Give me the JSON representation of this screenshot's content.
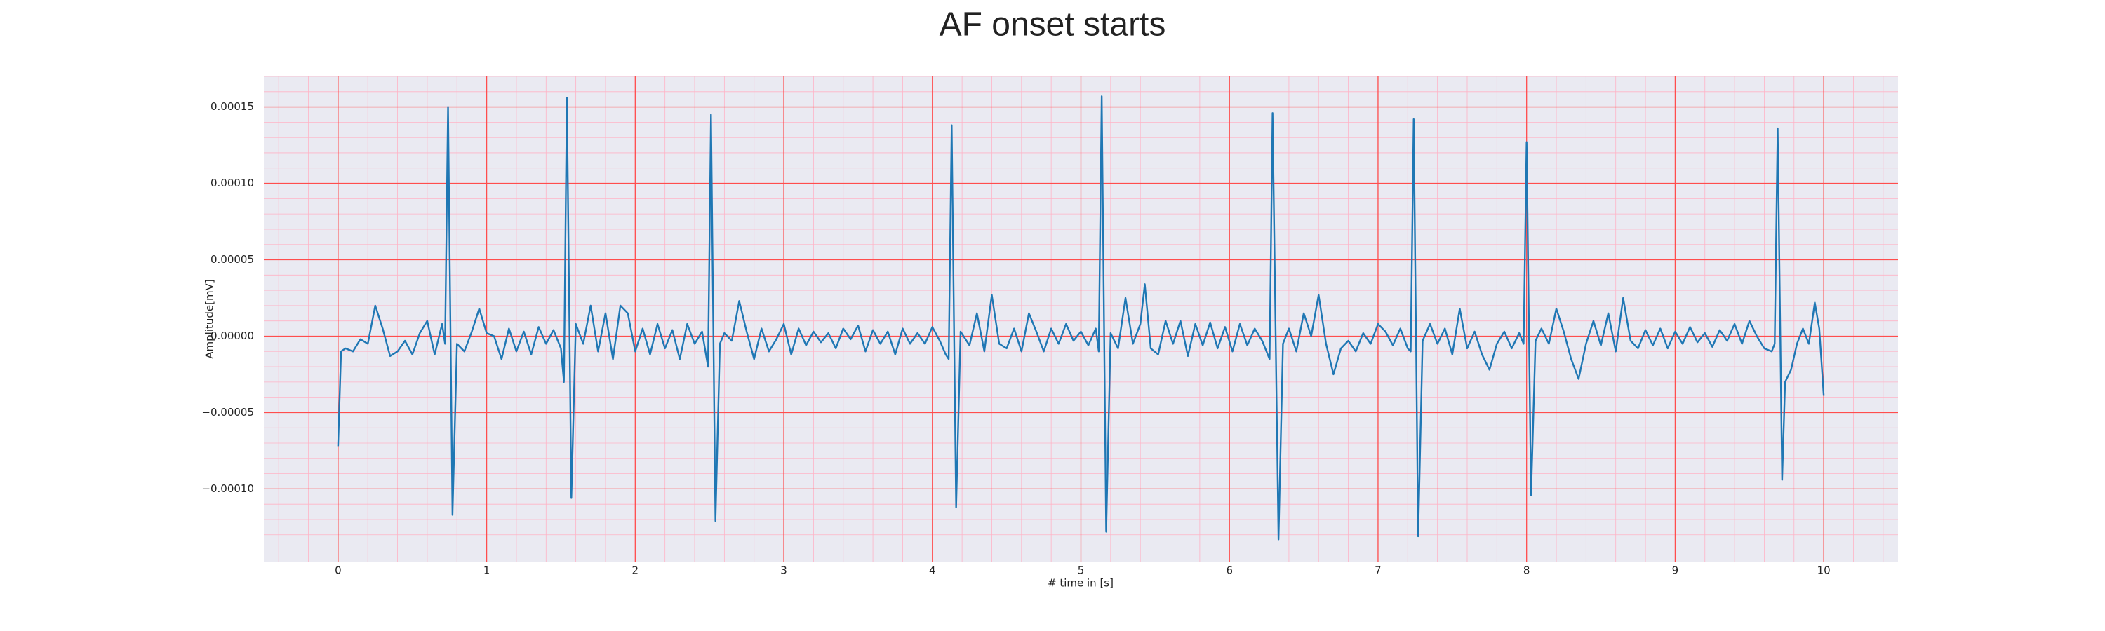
{
  "chart_data": {
    "type": "line",
    "title": "AF onset starts",
    "xlabel": "# time in [s]",
    "ylabel": "Amplitude[mV]",
    "color": "#1f77b4",
    "background": "#eaeaf2",
    "grid": true,
    "grid_color": "#ff4d4d",
    "minor_grid": true,
    "minor_grid_color": "#ffb3c6",
    "xlim": [
      -0.5,
      10.5
    ],
    "xticks": [
      0,
      1,
      2,
      3,
      4,
      5,
      6,
      7,
      8,
      9,
      10
    ],
    "ylim": [
      -0.000148,
      0.00017
    ],
    "yticks": [
      {
        "value": -0.0001,
        "label": "−0.00010"
      },
      {
        "value": -5e-05,
        "label": "−0.00005"
      },
      {
        "value": 0,
        "label": "0.00000"
      },
      {
        "value": 5e-05,
        "label": "0.00005"
      },
      {
        "value": 0.0001,
        "label": "0.00010"
      },
      {
        "value": 0.00015,
        "label": "0.00015"
      }
    ],
    "x": [
      0.0,
      0.02,
      0.05,
      0.1,
      0.15,
      0.2,
      0.25,
      0.3,
      0.35,
      0.4,
      0.45,
      0.5,
      0.55,
      0.6,
      0.65,
      0.7,
      0.72,
      0.74,
      0.77,
      0.8,
      0.85,
      0.9,
      0.95,
      1.0,
      1.05,
      1.1,
      1.15,
      1.2,
      1.25,
      1.3,
      1.35,
      1.4,
      1.45,
      1.5,
      1.52,
      1.54,
      1.57,
      1.6,
      1.65,
      1.7,
      1.75,
      1.8,
      1.85,
      1.9,
      1.95,
      2.0,
      2.05,
      2.1,
      2.15,
      2.2,
      2.25,
      2.3,
      2.35,
      2.4,
      2.45,
      2.49,
      2.51,
      2.54,
      2.57,
      2.6,
      2.65,
      2.7,
      2.75,
      2.8,
      2.85,
      2.9,
      2.95,
      3.0,
      3.05,
      3.1,
      3.15,
      3.2,
      3.25,
      3.3,
      3.35,
      3.4,
      3.45,
      3.5,
      3.55,
      3.6,
      3.65,
      3.7,
      3.75,
      3.8,
      3.85,
      3.9,
      3.95,
      4.0,
      4.05,
      4.09,
      4.11,
      4.13,
      4.16,
      4.19,
      4.25,
      4.3,
      4.35,
      4.4,
      4.45,
      4.5,
      4.55,
      4.6,
      4.65,
      4.7,
      4.75,
      4.8,
      4.85,
      4.9,
      4.95,
      5.0,
      5.05,
      5.1,
      5.12,
      5.14,
      5.17,
      5.2,
      5.25,
      5.3,
      5.35,
      5.4,
      5.43,
      5.47,
      5.52,
      5.57,
      5.62,
      5.67,
      5.72,
      5.77,
      5.82,
      5.87,
      5.92,
      5.97,
      6.02,
      6.07,
      6.12,
      6.17,
      6.22,
      6.27,
      6.29,
      6.33,
      6.36,
      6.4,
      6.45,
      6.5,
      6.55,
      6.6,
      6.65,
      6.7,
      6.75,
      6.8,
      6.85,
      6.9,
      6.95,
      7.0,
      7.05,
      7.1,
      7.15,
      7.2,
      7.22,
      7.24,
      7.27,
      7.3,
      7.35,
      7.4,
      7.45,
      7.5,
      7.55,
      7.6,
      7.65,
      7.7,
      7.75,
      7.8,
      7.85,
      7.9,
      7.95,
      7.98,
      8.0,
      8.03,
      8.06,
      8.1,
      8.15,
      8.2,
      8.25,
      8.3,
      8.35,
      8.4,
      8.45,
      8.5,
      8.55,
      8.6,
      8.65,
      8.7,
      8.75,
      8.8,
      8.85,
      8.9,
      8.95,
      9.0,
      9.05,
      9.1,
      9.15,
      9.2,
      9.25,
      9.3,
      9.35,
      9.4,
      9.45,
      9.5,
      9.55,
      9.6,
      9.65,
      9.67,
      9.69,
      9.72,
      9.74,
      9.78,
      9.82,
      9.86,
      9.9,
      9.94,
      9.97,
      10.0
    ],
    "values": [
      -7.2e-05,
      -1e-05,
      -8e-06,
      -1e-05,
      -2e-06,
      -5e-06,
      2e-05,
      5e-06,
      -1.3e-05,
      -1e-05,
      -3e-06,
      -1.2e-05,
      2e-06,
      1e-05,
      -1.2e-05,
      8e-06,
      -5e-06,
      0.00015,
      -0.000117,
      -5e-06,
      -1e-05,
      3e-06,
      1.8e-05,
      2e-06,
      0,
      -1.5e-05,
      5e-06,
      -1e-05,
      3e-06,
      -1.2e-05,
      6e-06,
      -5e-06,
      4e-06,
      -8e-06,
      -3e-05,
      0.000156,
      -0.000106,
      8e-06,
      -5e-06,
      2e-05,
      -1e-05,
      1.5e-05,
      -1.5e-05,
      2e-05,
      1.5e-05,
      -1e-05,
      5e-06,
      -1.2e-05,
      8e-06,
      -8e-06,
      4e-06,
      -1.5e-05,
      8e-06,
      -5e-06,
      3e-06,
      -2e-05,
      0.000145,
      -0.000121,
      -5e-06,
      2e-06,
      -3e-06,
      2.3e-05,
      3e-06,
      -1.5e-05,
      5e-06,
      -1e-05,
      -2e-06,
      8e-06,
      -1.2e-05,
      5e-06,
      -6e-06,
      3e-06,
      -4e-06,
      2e-06,
      -8e-06,
      5e-06,
      -2e-06,
      7e-06,
      -1e-05,
      4e-06,
      -5e-06,
      3e-06,
      -1.2e-05,
      5e-06,
      -5e-06,
      2e-06,
      -5e-06,
      6e-06,
      -3e-06,
      -1.2e-05,
      -1.5e-05,
      0.000138,
      -0.000112,
      3e-06,
      -6e-06,
      1.5e-05,
      -1e-05,
      2.7e-05,
      -5e-06,
      -8e-06,
      5e-06,
      -1e-05,
      1.5e-05,
      3e-06,
      -1e-05,
      5e-06,
      -5e-06,
      8e-06,
      -3e-06,
      3e-06,
      -6e-06,
      5e-06,
      -1e-05,
      0.000157,
      -0.000128,
      2e-06,
      -8e-06,
      2.5e-05,
      -5e-06,
      8e-06,
      3.4e-05,
      -8e-06,
      -1.2e-05,
      1e-05,
      -5e-06,
      1e-05,
      -1.3e-05,
      8e-06,
      -6e-06,
      9e-06,
      -8e-06,
      6e-06,
      -1e-05,
      8e-06,
      -6e-06,
      5e-06,
      -3e-06,
      -1.5e-05,
      0.000146,
      -0.000133,
      -5e-06,
      5e-06,
      -1e-05,
      1.5e-05,
      0,
      2.7e-05,
      -5e-06,
      -2.5e-05,
      -8e-06,
      -3e-06,
      -1e-05,
      2e-06,
      -5e-06,
      8e-06,
      3e-06,
      -6e-06,
      5e-06,
      -8e-06,
      -1e-05,
      0.000142,
      -0.000131,
      -3e-06,
      8e-06,
      -5e-06,
      5e-06,
      -1.2e-05,
      1.8e-05,
      -8e-06,
      3e-06,
      -1.2e-05,
      -2.2e-05,
      -5e-06,
      3e-06,
      -8e-06,
      2e-06,
      -5e-06,
      0.000127,
      -0.000104,
      -3e-06,
      5e-06,
      -5e-06,
      1.8e-05,
      3e-06,
      -1.5e-05,
      -2.8e-05,
      -5e-06,
      1e-05,
      -6e-06,
      1.5e-05,
      -1e-05,
      2.5e-05,
      -3e-06,
      -8e-06,
      4e-06,
      -6e-06,
      5e-06,
      -8e-06,
      3e-06,
      -5e-06,
      6e-06,
      -4e-06,
      2e-06,
      -7e-06,
      4e-06,
      -3e-06,
      8e-06,
      -5e-06,
      1e-05,
      0,
      -8e-06,
      -1e-05,
      -5e-06,
      0.000136,
      -9.4e-05,
      -3e-05,
      -2.2e-05,
      -5e-06,
      5e-06,
      -5e-06,
      2.2e-05,
      5e-06,
      -3.9e-05
    ]
  }
}
